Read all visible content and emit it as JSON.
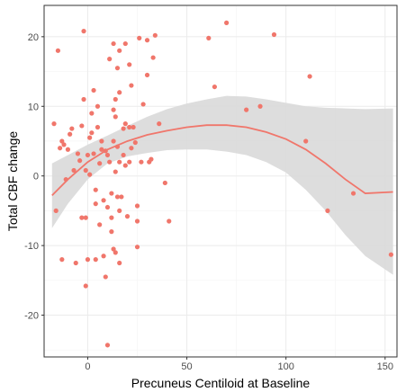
{
  "chart_data": {
    "type": "scatter",
    "title": "",
    "xlabel": "Precuneus Centiloid at Baseline",
    "ylabel": "Total CBF change",
    "xlim": [
      -22,
      156
    ],
    "ylim": [
      -26,
      24.5
    ],
    "x_ticks": [
      0,
      50,
      100,
      150
    ],
    "y_ticks": [
      -20,
      -10,
      0,
      10,
      20
    ],
    "x_tick_labels": [
      "0",
      "50",
      "100",
      "150"
    ],
    "y_tick_labels": [
      "-20",
      "-10",
      "0",
      "10",
      "20"
    ],
    "grid": true,
    "legend": "none",
    "colors": {
      "points": "#F0766B",
      "fit_line": "#F0766B",
      "confidence_band": "#d9d9d9",
      "panel_border": "#333333",
      "grid_major": "#ebebeb",
      "grid_minor": "#f3f3f3"
    },
    "points": [
      [
        -17,
        7.5
      ],
      [
        -16,
        -5
      ],
      [
        -15,
        18
      ],
      [
        -14,
        4
      ],
      [
        -13,
        5
      ],
      [
        -13,
        -12
      ],
      [
        -12,
        4.5
      ],
      [
        -11,
        -0.5
      ],
      [
        -10,
        3.8
      ],
      [
        -9,
        6
      ],
      [
        -8,
        6.8
      ],
      [
        -7,
        0.8
      ],
      [
        -6,
        -12.5
      ],
      [
        -5,
        3.2
      ],
      [
        -4,
        2.2
      ],
      [
        -3,
        7.2
      ],
      [
        -3,
        -6
      ],
      [
        -2,
        20.8
      ],
      [
        -2,
        11
      ],
      [
        -1,
        -15.8
      ],
      [
        -1,
        -6
      ],
      [
        -1,
        0.8
      ],
      [
        0,
        3
      ],
      [
        0,
        -12
      ],
      [
        1,
        5.5
      ],
      [
        1,
        0.2
      ],
      [
        2,
        9
      ],
      [
        2,
        6.2
      ],
      [
        3,
        3.2
      ],
      [
        3,
        12.3
      ],
      [
        4,
        -4
      ],
      [
        4,
        -2
      ],
      [
        4,
        -12
      ],
      [
        5,
        10
      ],
      [
        5,
        7
      ],
      [
        6,
        1.8
      ],
      [
        6,
        -7
      ],
      [
        7,
        3.8
      ],
      [
        7,
        5
      ],
      [
        8,
        -3.5
      ],
      [
        8,
        -11.5
      ],
      [
        9,
        3.6
      ],
      [
        9,
        -14.5
      ],
      [
        10,
        3
      ],
      [
        10,
        -4.5
      ],
      [
        10,
        -24.3
      ],
      [
        11,
        16.8
      ],
      [
        11,
        2
      ],
      [
        12,
        -2.5
      ],
      [
        12,
        -6
      ],
      [
        12,
        -8
      ],
      [
        13,
        19
      ],
      [
        13,
        9.5
      ],
      [
        13,
        5
      ],
      [
        13,
        -10.5
      ],
      [
        14,
        8.5
      ],
      [
        14,
        11
      ],
      [
        14,
        0.6
      ],
      [
        14,
        -11
      ],
      [
        15,
        15.5
      ],
      [
        15,
        4.2
      ],
      [
        15,
        -3
      ],
      [
        16,
        18
      ],
      [
        16,
        12
      ],
      [
        16,
        -5
      ],
      [
        16,
        2
      ],
      [
        16,
        -12.5
      ],
      [
        17,
        -3
      ],
      [
        18,
        6.8
      ],
      [
        18,
        3
      ],
      [
        19,
        19
      ],
      [
        19,
        7.5
      ],
      [
        19,
        1.5
      ],
      [
        20,
        -5.8
      ],
      [
        21,
        16
      ],
      [
        21,
        2
      ],
      [
        21,
        7
      ],
      [
        22,
        13
      ],
      [
        22,
        4
      ],
      [
        23,
        7
      ],
      [
        24,
        4.8
      ],
      [
        25,
        -4.3
      ],
      [
        25,
        -6.5
      ],
      [
        25,
        -10.2
      ],
      [
        26,
        19.8
      ],
      [
        27,
        2
      ],
      [
        28,
        10.3
      ],
      [
        30,
        14.5
      ],
      [
        30,
        19.5
      ],
      [
        31,
        2
      ],
      [
        32,
        2.4
      ],
      [
        33,
        17
      ],
      [
        34,
        20.2
      ],
      [
        36,
        7.5
      ],
      [
        39,
        -1
      ],
      [
        41,
        -6.5
      ],
      [
        61,
        19.8
      ],
      [
        64,
        12.8
      ],
      [
        70,
        22
      ],
      [
        80,
        9.5
      ],
      [
        87,
        10
      ],
      [
        94,
        20.3
      ],
      [
        110,
        5
      ],
      [
        112,
        14.3
      ],
      [
        121,
        -5
      ],
      [
        134,
        -2.5
      ],
      [
        153,
        -11.3
      ]
    ],
    "fit_x": [
      -18,
      -10,
      0,
      10,
      20,
      30,
      40,
      50,
      60,
      70,
      80,
      90,
      100,
      110,
      120,
      130,
      140,
      154
    ],
    "fit_y": [
      -2.8,
      -0.5,
      2.0,
      3.8,
      5.0,
      5.9,
      6.5,
      7.0,
      7.3,
      7.3,
      7.0,
      6.3,
      5.3,
      3.8,
      1.8,
      -0.5,
      -2.5,
      -2.3
    ],
    "band_lower": [
      -7.5,
      -4.0,
      -0.5,
      1.8,
      2.8,
      3.3,
      3.7,
      3.8,
      3.8,
      3.5,
      3.0,
      2.0,
      0.5,
      -2.0,
      -5.0,
      -8.5,
      -11.5,
      -14.2
    ],
    "band_upper": [
      1.8,
      3.0,
      4.5,
      5.8,
      7.2,
      8.5,
      9.6,
      10.4,
      11.0,
      11.5,
      11.4,
      11.0,
      10.5,
      10.0,
      9.8,
      9.7,
      9.6,
      9.7
    ]
  }
}
